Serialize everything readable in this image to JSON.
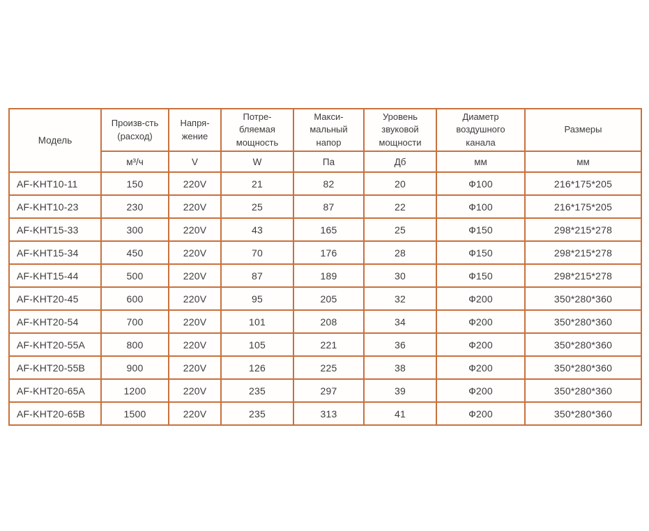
{
  "colors": {
    "table_border": "#c8713c",
    "text": "#3b3b3b",
    "background": "#ffffff"
  },
  "table": {
    "header": {
      "model": "Модель",
      "cols": [
        {
          "label": "Произв-сть\n(расход)",
          "unit": "м³/ч"
        },
        {
          "label": "Напря-\nжение",
          "unit": "V"
        },
        {
          "label": "Потре-\nбляемая\nмощность",
          "unit": "W"
        },
        {
          "label": "Макси-\nмальный\nнапор",
          "unit": "Па"
        },
        {
          "label": "Уровень\nзвуковой\nмощности",
          "unit": "Дб"
        },
        {
          "label": "Диаметр\nвоздушного\nканала",
          "unit": "мм"
        },
        {
          "label": "Размеры",
          "unit": "мм"
        }
      ]
    },
    "rows": [
      [
        "AF-KHT10-11",
        "150",
        "220V",
        "21",
        "82",
        "20",
        "Ф100",
        "216*175*205"
      ],
      [
        "AF-KHT10-23",
        "230",
        "220V",
        "25",
        "87",
        "22",
        "Ф100",
        "216*175*205"
      ],
      [
        "AF-KHT15-33",
        "300",
        "220V",
        "43",
        "165",
        "25",
        "Ф150",
        "298*215*278"
      ],
      [
        "AF-KHT15-34",
        "450",
        "220V",
        "70",
        "176",
        "28",
        "Ф150",
        "298*215*278"
      ],
      [
        "AF-KHT15-44",
        "500",
        "220V",
        "87",
        "189",
        "30",
        "Ф150",
        "298*215*278"
      ],
      [
        "AF-KHT20-45",
        "600",
        "220V",
        "95",
        "205",
        "32",
        "Ф200",
        "350*280*360"
      ],
      [
        "AF-KHT20-54",
        "700",
        "220V",
        "101",
        "208",
        "34",
        "Ф200",
        "350*280*360"
      ],
      [
        "AF-KHT20-55A",
        "800",
        "220V",
        "105",
        "221",
        "36",
        "Ф200",
        "350*280*360"
      ],
      [
        "AF-KHT20-55B",
        "900",
        "220V",
        "126",
        "225",
        "38",
        "Ф200",
        "350*280*360"
      ],
      [
        "AF-KHT20-65A",
        "1200",
        "220V",
        "235",
        "297",
        "39",
        "Ф200",
        "350*280*360"
      ],
      [
        "AF-KHT20-65B",
        "1500",
        "220V",
        "235",
        "313",
        "41",
        "Ф200",
        "350*280*360"
      ]
    ]
  }
}
